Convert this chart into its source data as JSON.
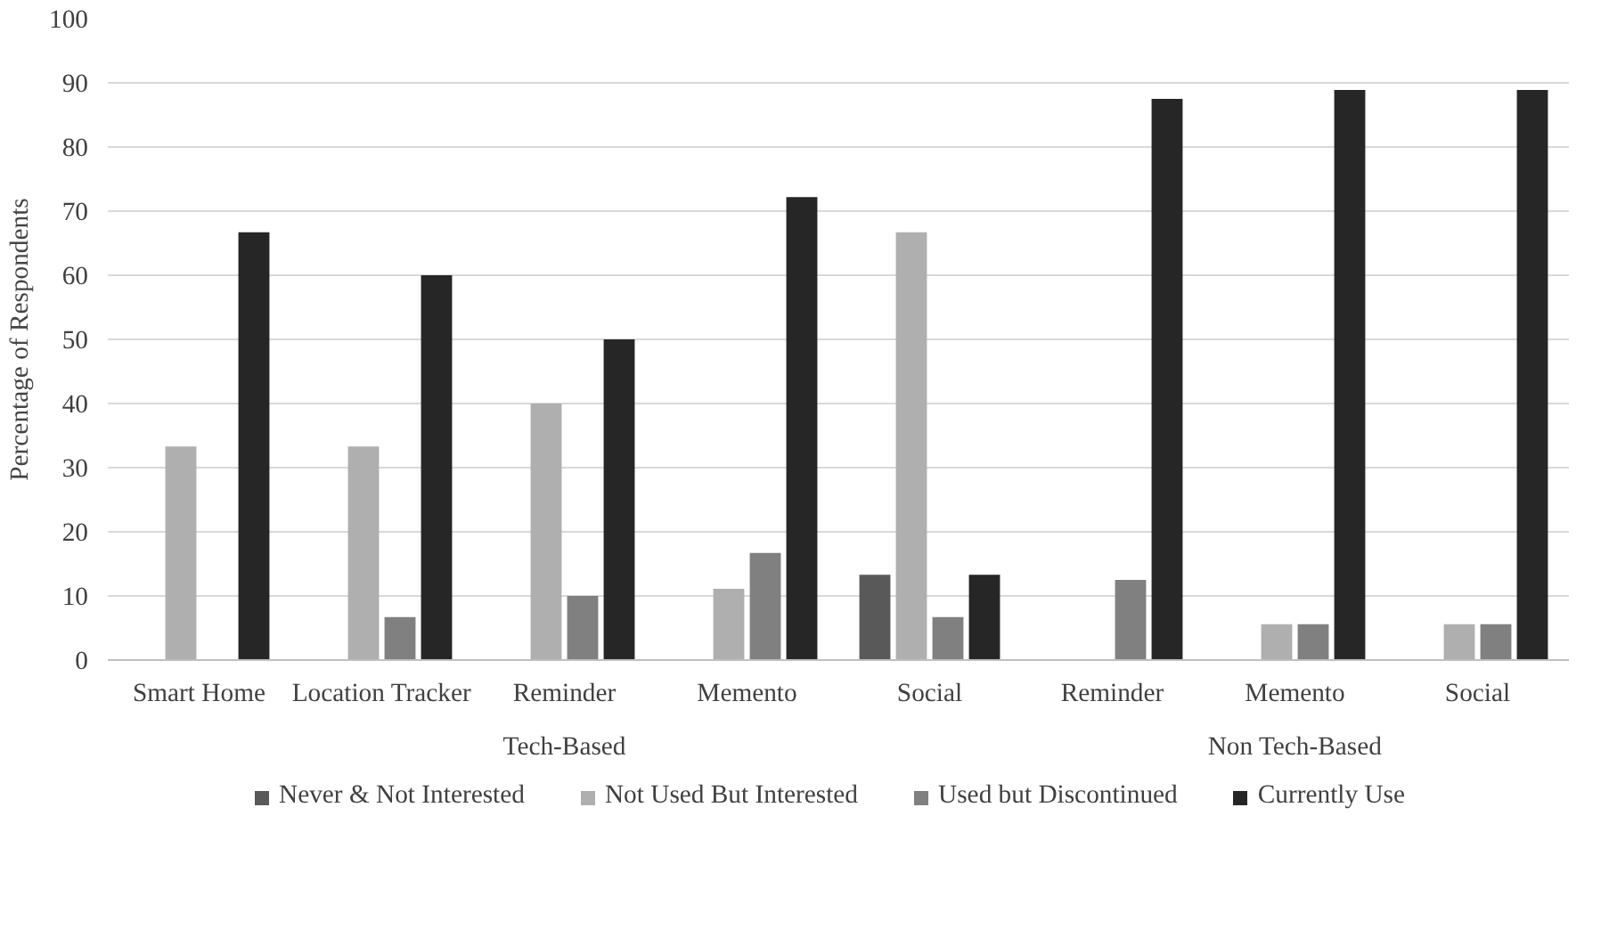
{
  "chart_data": {
    "type": "bar",
    "ylabel": "Percentage of Respondents",
    "categories": [
      "Smart Home",
      "Location Tracker",
      "Reminder",
      "Memento",
      "Social",
      "Reminder",
      "Memento",
      "Social"
    ],
    "annotations": [
      "Tech-Based",
      "Non Tech-Based"
    ],
    "series": [
      {
        "name": "Never & Not Interested",
        "color": "#595959",
        "values": [
          0,
          0,
          0,
          0,
          13.3,
          0,
          0,
          0
        ]
      },
      {
        "name": "Not Used But Interested",
        "color": "#afafaf",
        "values": [
          33.3,
          33.3,
          40,
          11.1,
          66.7,
          0,
          5.6,
          5.6
        ]
      },
      {
        "name": "Used but Discontinued",
        "color": "#808080",
        "values": [
          0,
          6.7,
          10,
          16.7,
          6.7,
          12.5,
          5.6,
          5.6
        ]
      },
      {
        "name": "Currently Use",
        "color": "#262626",
        "values": [
          66.7,
          60,
          50,
          72.2,
          13.3,
          87.5,
          88.9,
          88.9
        ]
      }
    ],
    "ylim": [
      0,
      100
    ],
    "yticks": [
      0,
      10,
      20,
      30,
      40,
      50,
      60,
      70,
      80,
      90,
      100
    ],
    "grid": "y",
    "legend": "bottom"
  }
}
